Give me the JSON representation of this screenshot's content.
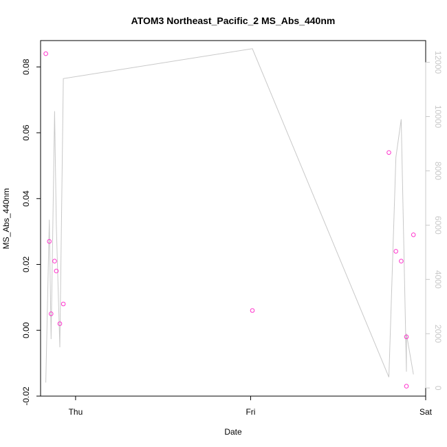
{
  "chart_data": {
    "type": "scatter",
    "title": "ATOM3 Northeast_Pacific_2 MS_Abs_440nm",
    "xlabel": "Date",
    "ylabel": "MS_Abs_440nm",
    "x_ticks": [
      "Thu",
      "Fri",
      "Sat"
    ],
    "x_range_days": [
      -0.2,
      2.0
    ],
    "ylim": [
      -0.02,
      0.088
    ],
    "y_ticks": [
      -0.02,
      0.0,
      0.02,
      0.04,
      0.06,
      0.08
    ],
    "y_tick_labels": [
      "-0.02",
      "0.00",
      "0.02",
      "0.04",
      "0.06",
      "0.08"
    ],
    "y2lim": [
      -300,
      12800
    ],
    "y2_ticks": [
      0,
      2000,
      4000,
      6000,
      8000,
      10000,
      12000
    ],
    "y2_tick_labels": [
      "0",
      "2000",
      "4000",
      "6000",
      "8000",
      "10000",
      "12000"
    ],
    "colors": {
      "points": "#ff33cc",
      "line": "#c8c8c8",
      "axis": "#000000"
    },
    "points": [
      {
        "x": -0.17,
        "y": 0.084
      },
      {
        "x": -0.15,
        "y": 0.027
      },
      {
        "x": -0.14,
        "y": 0.005
      },
      {
        "x": -0.12,
        "y": 0.021
      },
      {
        "x": -0.11,
        "y": 0.018
      },
      {
        "x": -0.09,
        "y": 0.002
      },
      {
        "x": -0.07,
        "y": 0.008
      },
      {
        "x": 1.01,
        "y": 0.006
      },
      {
        "x": 1.79,
        "y": 0.054
      },
      {
        "x": 1.83,
        "y": 0.024
      },
      {
        "x": 1.86,
        "y": 0.021
      },
      {
        "x": 1.89,
        "y": -0.002
      },
      {
        "x": 1.89,
        "y": -0.017
      },
      {
        "x": 1.93,
        "y": 0.029
      }
    ],
    "series": [
      {
        "axis": "right",
        "x": [
          -0.17,
          -0.15,
          -0.14,
          -0.12,
          -0.11,
          -0.09,
          -0.07,
          1.01,
          1.79,
          1.83,
          1.86,
          1.89,
          1.89,
          1.93
        ],
        "y": [
          200,
          6200,
          1800,
          10200,
          6000,
          1500,
          11400,
          12500,
          400,
          8500,
          9900,
          600,
          2000,
          500
        ]
      }
    ]
  }
}
